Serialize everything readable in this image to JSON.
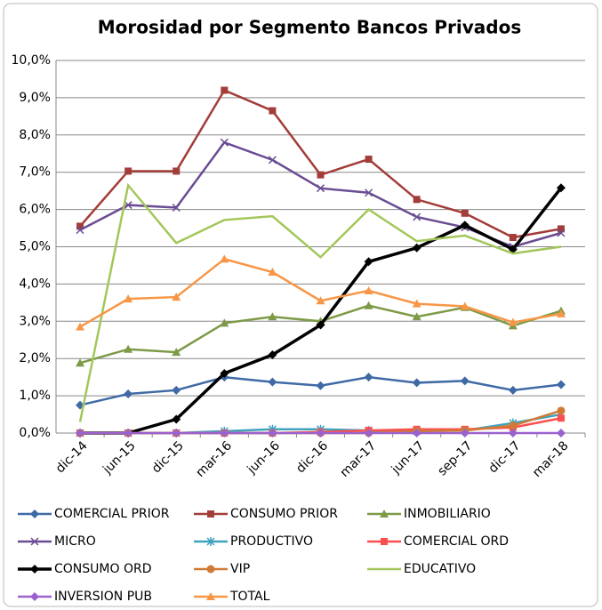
{
  "chart_data": {
    "type": "line",
    "title": "Morosidad por Segmento Bancos Privados",
    "categories": [
      "dic-14",
      "jun-15",
      "dic-15",
      "mar-16",
      "jun-16",
      "dic-16",
      "mar-17",
      "jun-17",
      "sep-17",
      "dic-17",
      "mar-18"
    ],
    "ylim": [
      0,
      10
    ],
    "yticks": [
      {
        "value": 0,
        "label": "0,0%"
      },
      {
        "value": 1,
        "label": "1,0%"
      },
      {
        "value": 2,
        "label": "2,0%"
      },
      {
        "value": 3,
        "label": "3,0%"
      },
      {
        "value": 4,
        "label": "4,0%"
      },
      {
        "value": 5,
        "label": "5,0%"
      },
      {
        "value": 6,
        "label": "6,0%"
      },
      {
        "value": 7,
        "label": "7,0%"
      },
      {
        "value": 8,
        "label": "8,0%"
      },
      {
        "value": 9,
        "label": "9,0%"
      },
      {
        "value": 10,
        "label": "10,0%"
      }
    ],
    "grid": true,
    "legend": "bottom",
    "series": [
      {
        "name": "COMERCIAL PRIOR",
        "color": "#3f6aa6",
        "marker": "diamond",
        "values": [
          0.75,
          1.05,
          1.15,
          1.5,
          1.37,
          1.27,
          1.5,
          1.35,
          1.4,
          1.15,
          1.3
        ]
      },
      {
        "name": "CONSUMO PRIOR",
        "color": "#a33d3a",
        "marker": "square",
        "values": [
          5.55,
          7.03,
          7.03,
          9.2,
          8.65,
          6.93,
          7.35,
          6.27,
          5.9,
          5.25,
          5.48
        ]
      },
      {
        "name": "INMOBILIARIO",
        "color": "#7d9a47",
        "marker": "triangle",
        "values": [
          1.88,
          2.25,
          2.17,
          2.95,
          3.12,
          3.0,
          3.42,
          3.12,
          3.37,
          2.88,
          3.28
        ]
      },
      {
        "name": "MICRO",
        "color": "#6a4c93",
        "marker": "x",
        "values": [
          5.45,
          6.12,
          6.05,
          7.8,
          7.33,
          6.57,
          6.45,
          5.8,
          5.52,
          5.0,
          5.37
        ]
      },
      {
        "name": "PRODUCTIVO",
        "color": "#3fa3c0",
        "marker": "star",
        "values": [
          0,
          0,
          0,
          0.05,
          0.1,
          0.1,
          0.07,
          0.05,
          0.07,
          0.27,
          0.5
        ]
      },
      {
        "name": "COMERCIAL ORD",
        "color": "#fb4f4f",
        "marker": "square",
        "values": [
          0,
          0,
          0,
          0,
          0,
          0.03,
          0.07,
          0.1,
          0.1,
          0.15,
          0.4
        ]
      },
      {
        "name": "CONSUMO ORD",
        "color": "#000000",
        "marker": "diamond",
        "values": [
          0,
          0,
          0.37,
          1.6,
          2.1,
          2.9,
          4.6,
          4.97,
          5.58,
          4.93,
          6.58
        ]
      },
      {
        "name": "VIP",
        "color": "#d07a35",
        "marker": "circle",
        "values": [
          0,
          0,
          0,
          0,
          0,
          0,
          0,
          0.05,
          0.07,
          0.2,
          0.6
        ]
      },
      {
        "name": "EDUCATIVO",
        "color": "#a3c75a",
        "marker": "none",
        "values": [
          0.3,
          6.65,
          5.1,
          5.72,
          5.82,
          4.72,
          6.0,
          5.15,
          5.3,
          4.82,
          5.0
        ]
      },
      {
        "name": "INVERSION PUB",
        "color": "#9b62cf",
        "marker": "diamond",
        "values": [
          0,
          0,
          0,
          0,
          0,
          0,
          0,
          0,
          0,
          0,
          0
        ]
      },
      {
        "name": "TOTAL",
        "color": "#f79646",
        "marker": "triangle",
        "values": [
          2.85,
          3.6,
          3.65,
          4.67,
          4.32,
          3.55,
          3.82,
          3.47,
          3.4,
          2.97,
          3.2
        ]
      }
    ]
  }
}
